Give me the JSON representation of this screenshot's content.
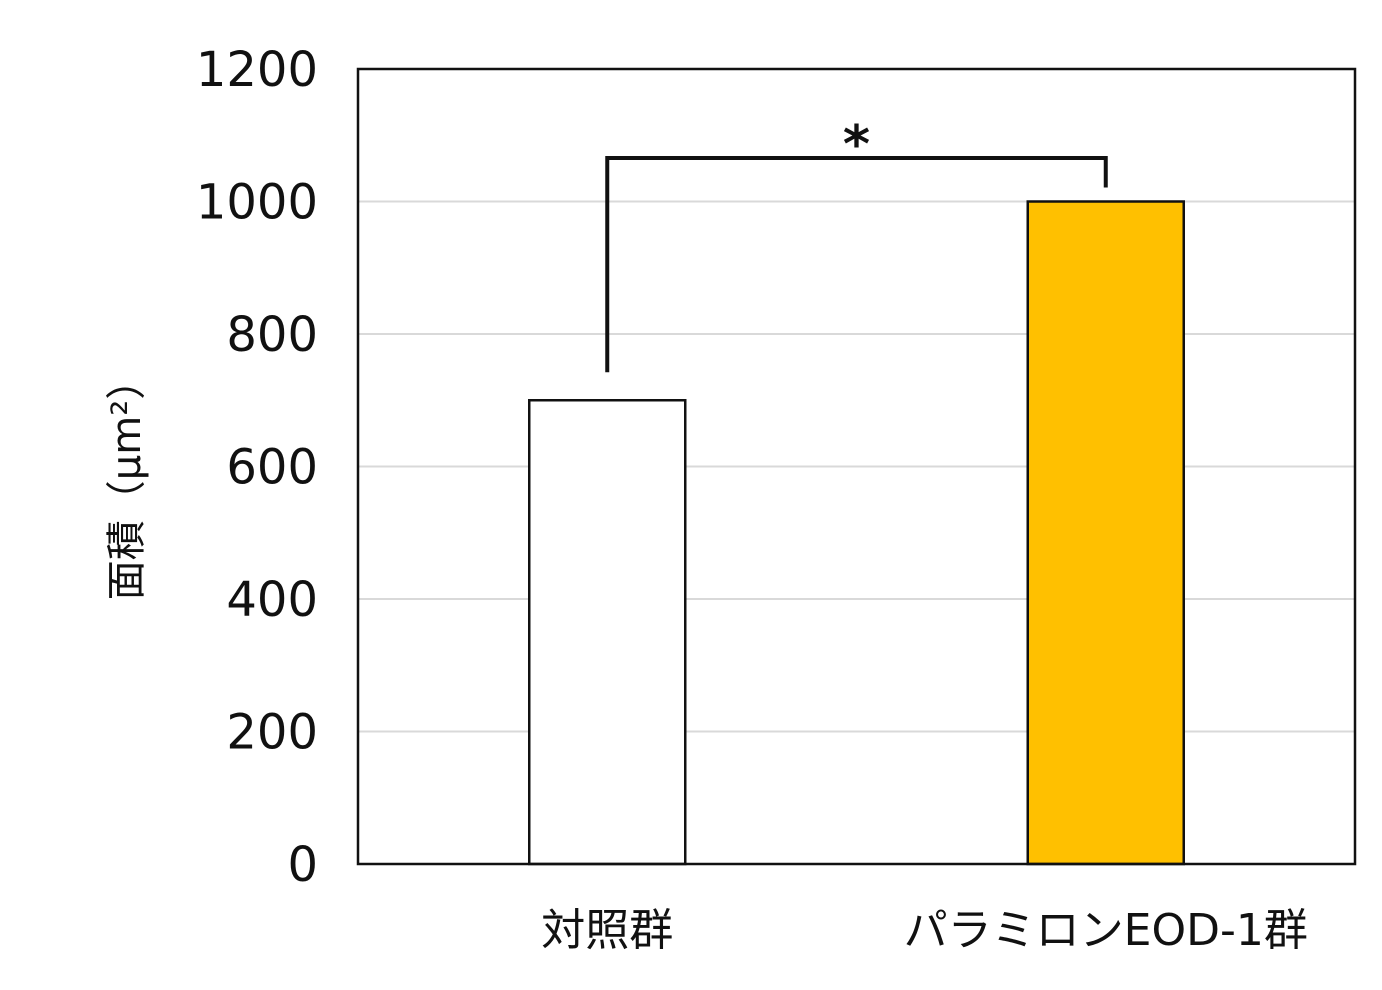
{
  "chart_data": {
    "type": "bar",
    "title": "",
    "xlabel": "",
    "ylabel": "面積（μm²）",
    "ylim": [
      0,
      1200
    ],
    "yticks": [
      0,
      200,
      400,
      600,
      800,
      1000,
      1200
    ],
    "yticks_labels": [
      "0",
      "200",
      "400",
      "600",
      "800",
      "1000",
      "1200"
    ],
    "grid": true,
    "legend": "none",
    "categories": [
      "対照群",
      "パラミロンEOD-1群"
    ],
    "values": [
      700,
      1000
    ],
    "bar_colors": [
      "#ffffff",
      "#ffc000"
    ],
    "annotations": [
      {
        "text": "*",
        "between": [
          "対照群",
          "パラミロンEOD-1群"
        ]
      }
    ]
  }
}
